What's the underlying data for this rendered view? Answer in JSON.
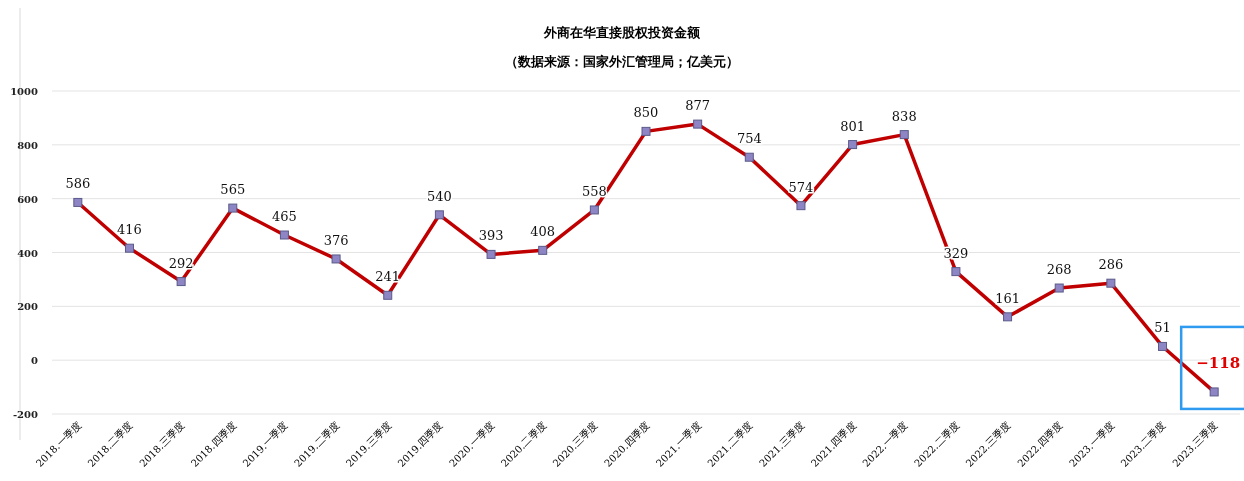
{
  "chart_data": {
    "type": "line",
    "title": "外商在华直接股权投资金额",
    "subtitle": "（数据来源：国家外汇管理局；亿美元）",
    "categories": [
      "2018.一季度",
      "2018.二季度",
      "2018.三季度",
      "2018.四季度",
      "2019.一季度",
      "2019.二季度",
      "2019.三季度",
      "2019.四季度",
      "2020.一季度",
      "2020.二季度",
      "2020.三季度",
      "2020.四季度",
      "2021.一季度",
      "2021.二季度",
      "2021.三季度",
      "2021.四季度",
      "2022.一季度",
      "2022.二季度",
      "2022.三季度",
      "2022.四季度",
      "2023.一季度",
      "2023.二季度",
      "2023.三季度"
    ],
    "series": [
      {
        "color": "#c00000",
        "values": [
          586,
          416,
          292,
          565,
          465,
          376,
          241,
          540,
          393,
          408,
          558,
          850,
          877,
          754,
          574,
          801,
          838,
          329,
          161,
          268,
          286,
          51,
          -118
        ]
      }
    ],
    "ylim": [
      -200,
      1000
    ],
    "yticks": [
      -200,
      0,
      200,
      400,
      600,
      800,
      1000
    ],
    "grid": "y",
    "marker": "square",
    "line_style": "solid",
    "data_labels": true
  }
}
